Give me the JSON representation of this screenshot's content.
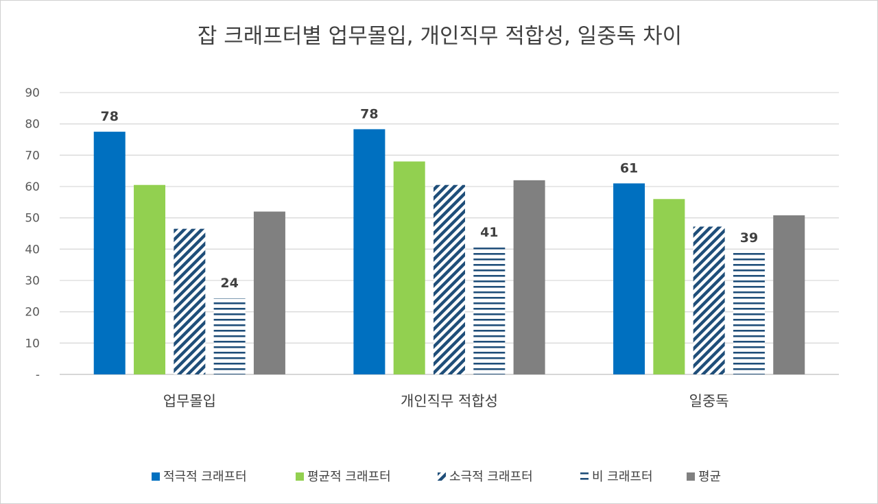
{
  "chart_data": {
    "type": "bar",
    "title": "잡 크래프터별 업무몰입, 개인직무 적합성, 일중독 차이",
    "categories": [
      "업무몰입",
      "개인직무 적합성",
      "일중독"
    ],
    "y_ticks": [
      "-",
      "10",
      "20",
      "30",
      "40",
      "50",
      "60",
      "70",
      "80",
      "90"
    ],
    "ylim": [
      0,
      90
    ],
    "grid": true,
    "legend_position": "bottom",
    "series": [
      {
        "name": "적극적 크래프터",
        "values": [
          77.5,
          78.3,
          61.0
        ],
        "color": "#0070C0",
        "pattern": "solid",
        "labels": [
          "78",
          "78",
          "61"
        ]
      },
      {
        "name": "평균적 크래프터",
        "values": [
          60.5,
          68.0,
          56.0
        ],
        "color": "#92D050",
        "pattern": "solid",
        "labels": [
          "",
          "",
          ""
        ]
      },
      {
        "name": "소극적 크래프터",
        "values": [
          46.5,
          60.5,
          47.2
        ],
        "color": "#1F4E79",
        "pattern": "diagonal",
        "labels": [
          "",
          "",
          ""
        ]
      },
      {
        "name": "비 크래프터",
        "values": [
          24.3,
          40.5,
          38.8
        ],
        "color": "#1F4E79",
        "pattern": "horizontal",
        "labels": [
          "24",
          "41",
          "39"
        ]
      },
      {
        "name": "평균",
        "values": [
          52.0,
          62.0,
          50.8
        ],
        "color": "#808080",
        "pattern": "solid",
        "labels": [
          "",
          "",
          ""
        ]
      }
    ]
  }
}
